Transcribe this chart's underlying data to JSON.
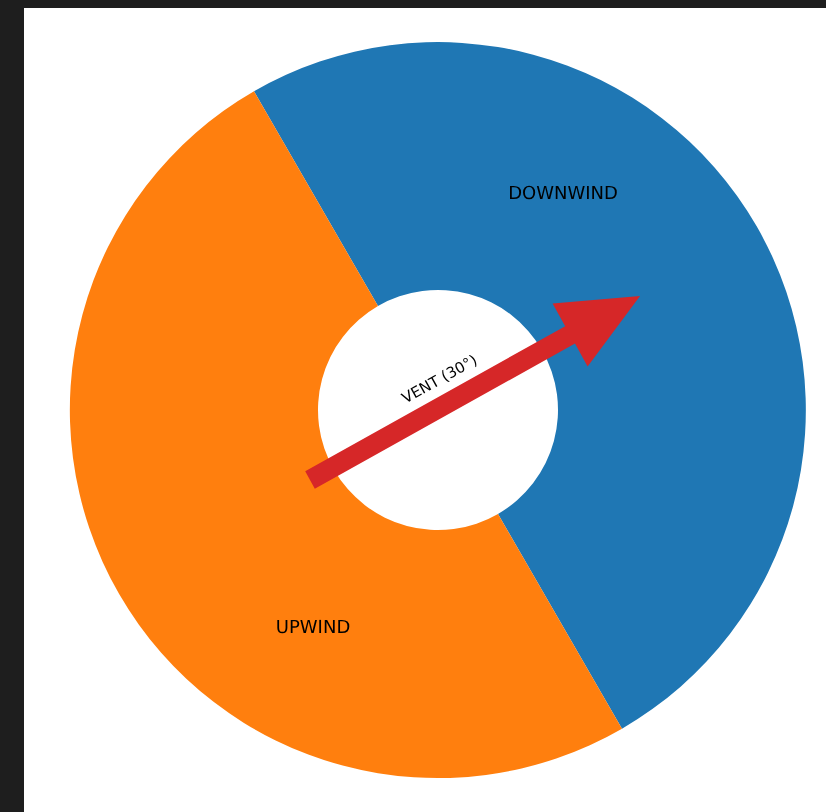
{
  "chart_data": {
    "type": "donut",
    "categories": [
      "DOWNWIND",
      "UPWIND"
    ],
    "values": [
      50,
      50
    ],
    "colors": [
      "#1f77b4",
      "#ff7f0e"
    ],
    "annotations": [
      "VENT (30°)"
    ]
  }
}
